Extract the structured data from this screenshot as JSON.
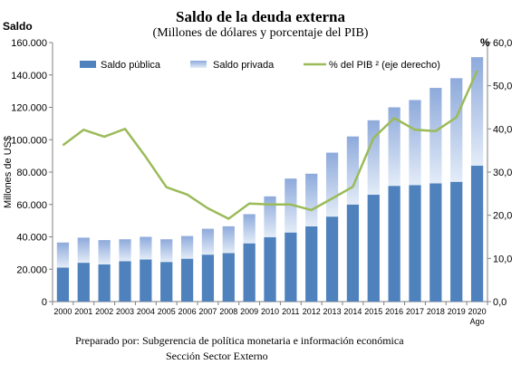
{
  "chart_data": {
    "type": "bar",
    "title": "Saldo de la deuda externa",
    "subtitle": "(Millones de dólares y porcentaje del PIB)",
    "left_axis_title": "Saldo",
    "ylabel": "Millones de US$",
    "right_axis_title": "%",
    "categories": [
      "2000",
      "2001",
      "2002",
      "2003",
      "2004",
      "2005",
      "2006",
      "2007",
      "2008",
      "2009",
      "2010",
      "2011",
      "2012",
      "2013",
      "2014",
      "2015",
      "2016",
      "2017",
      "2018",
      "2019",
      "2020"
    ],
    "last_category_sublabel": "Ago",
    "ylim": [
      0,
      160000
    ],
    "yticks": [
      "0",
      "20.000",
      "40.000",
      "60.000",
      "80.000",
      "100.000",
      "120.000",
      "140.000",
      "160.000"
    ],
    "y2lim": [
      0,
      60
    ],
    "y2ticks": [
      "0,0",
      "10,0",
      "20,0",
      "30,0",
      "40,0",
      "50,0",
      "60,0"
    ],
    "stacked": true,
    "series": [
      {
        "name": "Saldo pública",
        "kind": "bar",
        "color": "#4F81BD",
        "values": [
          21000,
          24000,
          23000,
          25000,
          26000,
          24500,
          26500,
          29000,
          30000,
          36000,
          39800,
          42700,
          46500,
          52500,
          60000,
          66000,
          71500,
          72000,
          73000,
          74000,
          84000
        ]
      },
      {
        "name": "Saldo privada",
        "kind": "bar",
        "color": "#B9CDE9",
        "values": [
          15500,
          15500,
          15000,
          13500,
          14000,
          14000,
          14000,
          16000,
          16500,
          18000,
          25200,
          33300,
          32500,
          39500,
          42000,
          46000,
          48500,
          52500,
          59000,
          64000,
          67000
        ]
      },
      {
        "name": "% del PIB ² (eje derecho)",
        "kind": "line",
        "axis": "right",
        "color": "#9BBB59",
        "values": [
          36.2,
          39.8,
          38.2,
          40.0,
          33.5,
          26.5,
          24.8,
          21.6,
          19.2,
          22.7,
          22.5,
          22.5,
          21.2,
          23.9,
          26.6,
          37.9,
          42.5,
          39.8,
          39.5,
          42.7,
          53.5
        ]
      }
    ],
    "legend_position": "top",
    "grid": false
  },
  "footer": {
    "line1": "Preparado por:  Subgerencia de política monetaria e información económica",
    "line2": "Sección Sector Externo"
  }
}
